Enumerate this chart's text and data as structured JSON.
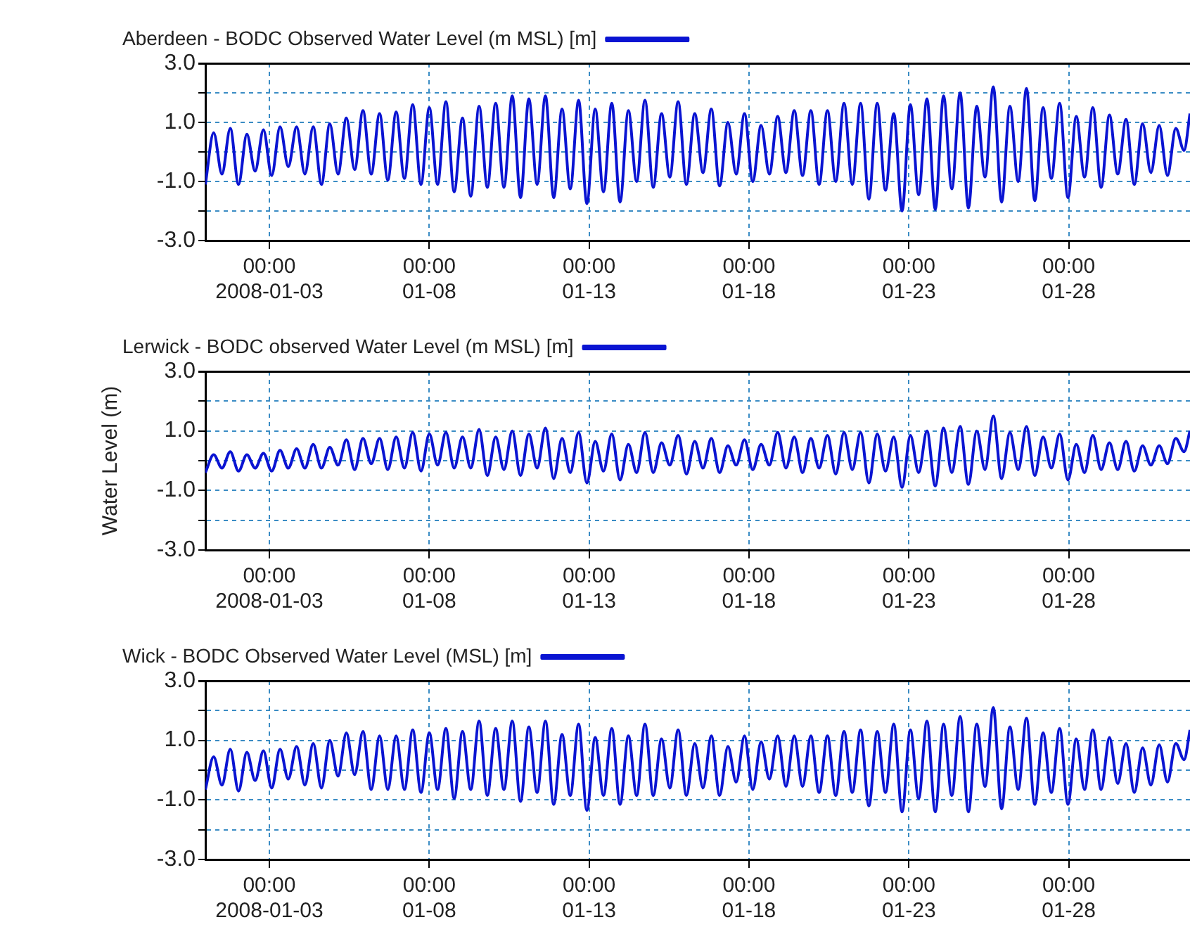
{
  "chart_data": [
    {
      "type": "line",
      "legend": "top left",
      "grid": true,
      "x": [
        "2008-01-01T00:00",
        "2008-01-01T06:14",
        "2008-01-01T12:27",
        "2008-01-01T18:41",
        "2008-01-02T00:54",
        "2008-01-02T07:08",
        "2008-01-02T13:21",
        "2008-01-02T19:35",
        "2008-01-03T01:48",
        "2008-01-03T08:02",
        "2008-01-03T14:15",
        "2008-01-03T20:29",
        "2008-01-04T02:42",
        "2008-01-04T08:56",
        "2008-01-04T15:09",
        "2008-01-04T21:23",
        "2008-01-05T03:36",
        "2008-01-05T09:50",
        "2008-01-05T16:03",
        "2008-01-05T22:17",
        "2008-01-06T04:30",
        "2008-01-06T10:44",
        "2008-01-06T16:57",
        "2008-01-06T23:11",
        "2008-01-07T05:24",
        "2008-01-07T11:38",
        "2008-01-07T17:51",
        "2008-01-08T00:05",
        "2008-01-08T06:18",
        "2008-01-08T12:32",
        "2008-01-08T18:45",
        "2008-01-09T00:59",
        "2008-01-09T07:12",
        "2008-01-09T13:26",
        "2008-01-09T19:39",
        "2008-01-10T01:53",
        "2008-01-10T08:06",
        "2008-01-10T14:20",
        "2008-01-10T20:33",
        "2008-01-11T02:47",
        "2008-01-11T09:00",
        "2008-01-11T15:14",
        "2008-01-11T21:27",
        "2008-01-12T03:41",
        "2008-01-12T09:54",
        "2008-01-12T16:08",
        "2008-01-12T22:21",
        "2008-01-13T04:35",
        "2008-01-13T10:48",
        "2008-01-13T17:02",
        "2008-01-13T23:15",
        "2008-01-14T05:29",
        "2008-01-14T11:42",
        "2008-01-14T17:56",
        "2008-01-15T00:09",
        "2008-01-15T06:23",
        "2008-01-15T12:36",
        "2008-01-15T18:50",
        "2008-01-16T01:03",
        "2008-01-16T07:17",
        "2008-01-16T13:30",
        "2008-01-16T19:44",
        "2008-01-17T01:57",
        "2008-01-17T08:11",
        "2008-01-17T14:24",
        "2008-01-17T20:38",
        "2008-01-18T02:51",
        "2008-01-18T09:05",
        "2008-01-18T15:18",
        "2008-01-18T21:32",
        "2008-01-19T03:45",
        "2008-01-19T09:59",
        "2008-01-19T16:12",
        "2008-01-19T22:26",
        "2008-01-20T04:39",
        "2008-01-20T10:53",
        "2008-01-20T17:06",
        "2008-01-20T23:20",
        "2008-01-21T05:33",
        "2008-01-21T11:47",
        "2008-01-21T18:00",
        "2008-01-22T00:14",
        "2008-01-22T06:27",
        "2008-01-22T12:41",
        "2008-01-22T18:54",
        "2008-01-23T01:08",
        "2008-01-23T07:21",
        "2008-01-23T13:35",
        "2008-01-23T19:48",
        "2008-01-24T02:02",
        "2008-01-24T08:15",
        "2008-01-24T14:29",
        "2008-01-24T20:42",
        "2008-01-25T02:56",
        "2008-01-25T09:09",
        "2008-01-25T15:23",
        "2008-01-25T21:36",
        "2008-01-26T03:50",
        "2008-01-26T10:03",
        "2008-01-26T16:17",
        "2008-01-26T22:30",
        "2008-01-27T04:44",
        "2008-01-27T10:57",
        "2008-01-27T17:11",
        "2008-01-27T23:24",
        "2008-01-28T05:38",
        "2008-01-28T11:51",
        "2008-01-28T18:05",
        "2008-01-29T00:18",
        "2008-01-29T06:32",
        "2008-01-29T12:45",
        "2008-01-29T18:59",
        "2008-01-30T01:12",
        "2008-01-30T07:26",
        "2008-01-30T13:39",
        "2008-01-30T19:53",
        "2008-01-31T02:06",
        "2008-01-31T08:20",
        "2008-01-31T14:33",
        "2008-01-31T19:00"
      ],
      "series": [
        {
          "name": "Aberdeen - BODC Observed Water Level (m MSL) [m]",
          "color": "#0a14d2",
          "values": [
            -1.1,
            0.65,
            -0.75,
            0.8,
            -1.1,
            0.6,
            -0.65,
            0.75,
            -0.8,
            0.85,
            -0.5,
            0.85,
            -0.75,
            0.85,
            -1.1,
            0.95,
            -0.75,
            1.15,
            -0.6,
            1.4,
            -0.75,
            1.3,
            -0.95,
            1.35,
            -0.9,
            1.6,
            -1.1,
            1.5,
            -1.1,
            1.7,
            -1.35,
            1.15,
            -1.5,
            1.55,
            -1.2,
            1.65,
            -1.2,
            1.9,
            -1.55,
            1.8,
            -1.1,
            1.9,
            -1.55,
            1.45,
            -1.25,
            1.75,
            -1.75,
            1.45,
            -1.35,
            1.65,
            -1.7,
            1.4,
            -1.0,
            1.75,
            -1.2,
            1.3,
            -0.85,
            1.7,
            -1.1,
            1.3,
            -0.7,
            1.45,
            -1.15,
            1.0,
            -0.75,
            1.3,
            -1.0,
            0.9,
            -0.75,
            1.2,
            -0.7,
            1.4,
            -0.8,
            1.4,
            -1.1,
            1.4,
            -1.0,
            1.65,
            -1.1,
            1.65,
            -1.6,
            1.65,
            -1.3,
            1.3,
            -2.0,
            1.6,
            -1.45,
            1.8,
            -1.95,
            1.9,
            -1.25,
            2.0,
            -1.9,
            1.55,
            -0.85,
            2.2,
            -1.7,
            1.55,
            -1.0,
            2.15,
            -1.65,
            1.5,
            -0.9,
            1.65,
            -1.55,
            1.2,
            -0.85,
            1.5,
            -1.2,
            1.25,
            -0.75,
            1.1,
            -1.1,
            0.95,
            -0.7,
            0.9,
            -0.8,
            0.8,
            0.05,
            1.3
          ]
        }
      ],
      "xlim": [
        "2008-01-01T00:00",
        "2008-01-31T19:00"
      ],
      "xticks": [
        {
          "value": "2008-01-03T00:00",
          "label": "00:00\n2008-01-03"
        },
        {
          "value": "2008-01-08T00:00",
          "label": "00:00\n01-08"
        },
        {
          "value": "2008-01-13T00:00",
          "label": "00:00\n01-13"
        },
        {
          "value": "2008-01-18T00:00",
          "label": "00:00\n01-18"
        },
        {
          "value": "2008-01-23T00:00",
          "label": "00:00\n01-23"
        },
        {
          "value": "2008-01-28T00:00",
          "label": "00:00\n01-28"
        }
      ],
      "ylim": [
        -3,
        3
      ],
      "yticks": [
        {
          "value": -3,
          "label": "-3.0"
        },
        {
          "value": -2,
          "label": null
        },
        {
          "value": -1,
          "label": "-1.0"
        },
        {
          "value": 0,
          "label": null
        },
        {
          "value": 1,
          "label": "1.0"
        },
        {
          "value": 2,
          "label": null
        },
        {
          "value": 3,
          "label": "3.0"
        }
      ]
    },
    {
      "type": "line",
      "legend": "top left",
      "grid": true,
      "ylabel": "Water Level (m)",
      "x": [
        "2008-01-01T00:00",
        "2008-01-01T06:14",
        "2008-01-01T12:27",
        "2008-01-01T18:41",
        "2008-01-02T00:54",
        "2008-01-02T07:08",
        "2008-01-02T13:21",
        "2008-01-02T19:35",
        "2008-01-03T01:48",
        "2008-01-03T08:02",
        "2008-01-03T14:15",
        "2008-01-03T20:29",
        "2008-01-04T02:42",
        "2008-01-04T08:56",
        "2008-01-04T15:09",
        "2008-01-04T21:23",
        "2008-01-05T03:36",
        "2008-01-05T09:50",
        "2008-01-05T16:03",
        "2008-01-05T22:17",
        "2008-01-06T04:30",
        "2008-01-06T10:44",
        "2008-01-06T16:57",
        "2008-01-06T23:11",
        "2008-01-07T05:24",
        "2008-01-07T11:38",
        "2008-01-07T17:51",
        "2008-01-08T00:05",
        "2008-01-08T06:18",
        "2008-01-08T12:32",
        "2008-01-08T18:45",
        "2008-01-09T00:59",
        "2008-01-09T07:12",
        "2008-01-09T13:26",
        "2008-01-09T19:39",
        "2008-01-10T01:53",
        "2008-01-10T08:06",
        "2008-01-10T14:20",
        "2008-01-10T20:33",
        "2008-01-11T02:47",
        "2008-01-11T09:00",
        "2008-01-11T15:14",
        "2008-01-11T21:27",
        "2008-01-12T03:41",
        "2008-01-12T09:54",
        "2008-01-12T16:08",
        "2008-01-12T22:21",
        "2008-01-13T04:35",
        "2008-01-13T10:48",
        "2008-01-13T17:02",
        "2008-01-13T23:15",
        "2008-01-14T05:29",
        "2008-01-14T11:42",
        "2008-01-14T17:56",
        "2008-01-15T00:09",
        "2008-01-15T06:23",
        "2008-01-15T12:36",
        "2008-01-15T18:50",
        "2008-01-16T01:03",
        "2008-01-16T07:17",
        "2008-01-16T13:30",
        "2008-01-16T19:44",
        "2008-01-17T01:57",
        "2008-01-17T08:11",
        "2008-01-17T14:24",
        "2008-01-17T20:38",
        "2008-01-18T02:51",
        "2008-01-18T09:05",
        "2008-01-18T15:18",
        "2008-01-18T21:32",
        "2008-01-19T03:45",
        "2008-01-19T09:59",
        "2008-01-19T16:12",
        "2008-01-19T22:26",
        "2008-01-20T04:39",
        "2008-01-20T10:53",
        "2008-01-20T17:06",
        "2008-01-20T23:20",
        "2008-01-21T05:33",
        "2008-01-21T11:47",
        "2008-01-21T18:00",
        "2008-01-22T00:14",
        "2008-01-22T06:27",
        "2008-01-22T12:41",
        "2008-01-22T18:54",
        "2008-01-23T01:08",
        "2008-01-23T07:21",
        "2008-01-23T13:35",
        "2008-01-23T19:48",
        "2008-01-24T02:02",
        "2008-01-24T08:15",
        "2008-01-24T14:29",
        "2008-01-24T20:42",
        "2008-01-25T02:56",
        "2008-01-25T09:09",
        "2008-01-25T15:23",
        "2008-01-25T21:36",
        "2008-01-26T03:50",
        "2008-01-26T10:03",
        "2008-01-26T16:17",
        "2008-01-26T22:30",
        "2008-01-27T04:44",
        "2008-01-27T10:57",
        "2008-01-27T17:11",
        "2008-01-27T23:24",
        "2008-01-28T05:38",
        "2008-01-28T11:51",
        "2008-01-28T18:05",
        "2008-01-29T00:18",
        "2008-01-29T06:32",
        "2008-01-29T12:45",
        "2008-01-29T18:59",
        "2008-01-30T01:12",
        "2008-01-30T07:26",
        "2008-01-30T13:39",
        "2008-01-30T19:53",
        "2008-01-31T02:06",
        "2008-01-31T08:20",
        "2008-01-31T14:33",
        "2008-01-31T19:00"
      ],
      "series": [
        {
          "name": "Lerwick - BODC observed Water Level (m MSL) [m]",
          "color": "#0a14d2",
          "values": [
            -0.4,
            0.2,
            -0.25,
            0.3,
            -0.35,
            0.2,
            -0.25,
            0.25,
            -0.35,
            0.35,
            -0.25,
            0.4,
            -0.25,
            0.55,
            -0.25,
            0.45,
            -0.15,
            0.7,
            -0.3,
            0.75,
            -0.1,
            0.75,
            -0.3,
            0.8,
            -0.25,
            0.95,
            -0.35,
            0.9,
            -0.15,
            0.95,
            -0.25,
            0.8,
            -0.25,
            1.05,
            -0.5,
            0.8,
            -0.3,
            1.0,
            -0.5,
            0.9,
            -0.25,
            1.1,
            -0.6,
            0.75,
            -0.4,
            0.95,
            -0.75,
            0.65,
            -0.35,
            0.9,
            -0.65,
            0.55,
            -0.4,
            0.95,
            -0.4,
            0.6,
            -0.15,
            0.85,
            -0.45,
            0.65,
            -0.25,
            0.75,
            -0.4,
            0.5,
            -0.15,
            0.7,
            -0.3,
            0.55,
            -0.15,
            0.95,
            -0.25,
            0.8,
            -0.4,
            0.75,
            -0.25,
            0.85,
            -0.45,
            0.95,
            -0.3,
            0.95,
            -0.75,
            0.9,
            -0.35,
            0.8,
            -0.9,
            0.85,
            -0.4,
            1.0,
            -0.85,
            1.1,
            -0.4,
            1.15,
            -0.8,
            1.0,
            -0.3,
            1.5,
            -0.6,
            0.95,
            -0.3,
            1.15,
            -0.5,
            0.8,
            -0.25,
            0.9,
            -0.65,
            0.55,
            -0.4,
            0.85,
            -0.3,
            0.6,
            -0.3,
            0.65,
            -0.35,
            0.5,
            -0.15,
            0.5,
            -0.1,
            0.75,
            0.3,
            1.0
          ]
        }
      ],
      "xlim": [
        "2008-01-01T00:00",
        "2008-01-31T19:00"
      ],
      "xticks": [
        {
          "value": "2008-01-03T00:00",
          "label": "00:00\n2008-01-03"
        },
        {
          "value": "2008-01-08T00:00",
          "label": "00:00\n01-08"
        },
        {
          "value": "2008-01-13T00:00",
          "label": "00:00\n01-13"
        },
        {
          "value": "2008-01-18T00:00",
          "label": "00:00\n01-18"
        },
        {
          "value": "2008-01-23T00:00",
          "label": "00:00\n01-23"
        },
        {
          "value": "2008-01-28T00:00",
          "label": "00:00\n01-28"
        }
      ],
      "ylim": [
        -3,
        3
      ],
      "yticks": [
        {
          "value": -3,
          "label": "-3.0"
        },
        {
          "value": -2,
          "label": null
        },
        {
          "value": -1,
          "label": "-1.0"
        },
        {
          "value": 0,
          "label": null
        },
        {
          "value": 1,
          "label": "1.0"
        },
        {
          "value": 2,
          "label": null
        },
        {
          "value": 3,
          "label": "3.0"
        }
      ]
    },
    {
      "type": "line",
      "legend": "top left",
      "grid": true,
      "x": [
        "2008-01-01T00:00",
        "2008-01-01T06:14",
        "2008-01-01T12:27",
        "2008-01-01T18:41",
        "2008-01-02T00:54",
        "2008-01-02T07:08",
        "2008-01-02T13:21",
        "2008-01-02T19:35",
        "2008-01-03T01:48",
        "2008-01-03T08:02",
        "2008-01-03T14:15",
        "2008-01-03T20:29",
        "2008-01-04T02:42",
        "2008-01-04T08:56",
        "2008-01-04T15:09",
        "2008-01-04T21:23",
        "2008-01-05T03:36",
        "2008-01-05T09:50",
        "2008-01-05T16:03",
        "2008-01-05T22:17",
        "2008-01-06T04:30",
        "2008-01-06T10:44",
        "2008-01-06T16:57",
        "2008-01-06T23:11",
        "2008-01-07T05:24",
        "2008-01-07T11:38",
        "2008-01-07T17:51",
        "2008-01-08T00:05",
        "2008-01-08T06:18",
        "2008-01-08T12:32",
        "2008-01-08T18:45",
        "2008-01-09T00:59",
        "2008-01-09T07:12",
        "2008-01-09T13:26",
        "2008-01-09T19:39",
        "2008-01-10T01:53",
        "2008-01-10T08:06",
        "2008-01-10T14:20",
        "2008-01-10T20:33",
        "2008-01-11T02:47",
        "2008-01-11T09:00",
        "2008-01-11T15:14",
        "2008-01-11T21:27",
        "2008-01-12T03:41",
        "2008-01-12T09:54",
        "2008-01-12T16:08",
        "2008-01-12T22:21",
        "2008-01-13T04:35",
        "2008-01-13T10:48",
        "2008-01-13T17:02",
        "2008-01-13T23:15",
        "2008-01-14T05:29",
        "2008-01-14T11:42",
        "2008-01-14T17:56",
        "2008-01-15T00:09",
        "2008-01-15T06:23",
        "2008-01-15T12:36",
        "2008-01-15T18:50",
        "2008-01-16T01:03",
        "2008-01-16T07:17",
        "2008-01-16T13:30",
        "2008-01-16T19:44",
        "2008-01-17T01:57",
        "2008-01-17T08:11",
        "2008-01-17T14:24",
        "2008-01-17T20:38",
        "2008-01-18T02:51",
        "2008-01-18T09:05",
        "2008-01-18T15:18",
        "2008-01-18T21:32",
        "2008-01-19T03:45",
        "2008-01-19T09:59",
        "2008-01-19T16:12",
        "2008-01-19T22:26",
        "2008-01-20T04:39",
        "2008-01-20T10:53",
        "2008-01-20T17:06",
        "2008-01-20T23:20",
        "2008-01-21T05:33",
        "2008-01-21T11:47",
        "2008-01-21T18:00",
        "2008-01-22T00:14",
        "2008-01-22T06:27",
        "2008-01-22T12:41",
        "2008-01-22T18:54",
        "2008-01-23T01:08",
        "2008-01-23T07:21",
        "2008-01-23T13:35",
        "2008-01-23T19:48",
        "2008-01-24T02:02",
        "2008-01-24T08:15",
        "2008-01-24T14:29",
        "2008-01-24T20:42",
        "2008-01-25T02:56",
        "2008-01-25T09:09",
        "2008-01-25T15:23",
        "2008-01-25T21:36",
        "2008-01-26T03:50",
        "2008-01-26T10:03",
        "2008-01-26T16:17",
        "2008-01-26T22:30",
        "2008-01-27T04:44",
        "2008-01-27T10:57",
        "2008-01-27T17:11",
        "2008-01-27T23:24",
        "2008-01-28T05:38",
        "2008-01-28T11:51",
        "2008-01-28T18:05",
        "2008-01-29T00:18",
        "2008-01-29T06:32",
        "2008-01-29T12:45",
        "2008-01-29T18:59",
        "2008-01-30T01:12",
        "2008-01-30T07:26",
        "2008-01-30T13:39",
        "2008-01-30T19:53",
        "2008-01-31T02:06",
        "2008-01-31T08:20",
        "2008-01-31T14:33",
        "2008-01-31T19:00"
      ],
      "series": [
        {
          "name": "Wick - BODC Observed Water Level (MSL) [m]",
          "color": "#0a14d2",
          "values": [
            -0.65,
            0.45,
            -0.5,
            0.7,
            -0.7,
            0.6,
            -0.35,
            0.65,
            -0.6,
            0.7,
            -0.3,
            0.8,
            -0.5,
            0.9,
            -0.6,
            1.0,
            -0.2,
            1.25,
            -0.15,
            1.3,
            -0.65,
            1.15,
            -0.65,
            1.15,
            -0.65,
            1.35,
            -0.75,
            1.25,
            -0.65,
            1.4,
            -0.95,
            1.3,
            -0.65,
            1.65,
            -0.85,
            1.4,
            -0.65,
            1.65,
            -1.05,
            1.45,
            -0.75,
            1.65,
            -1.15,
            1.2,
            -0.85,
            1.55,
            -1.35,
            1.1,
            -0.85,
            1.4,
            -1.15,
            1.15,
            -0.85,
            1.55,
            -0.85,
            1.05,
            -0.6,
            1.35,
            -0.85,
            0.9,
            -0.6,
            1.15,
            -0.85,
            0.8,
            -0.4,
            1.15,
            -0.65,
            0.95,
            -0.3,
            1.15,
            -0.55,
            1.15,
            -0.55,
            1.15,
            -0.75,
            1.15,
            -0.85,
            1.3,
            -0.75,
            1.35,
            -1.2,
            1.3,
            -0.75,
            1.55,
            -1.4,
            1.35,
            -0.95,
            1.65,
            -1.4,
            1.55,
            -0.85,
            1.8,
            -1.4,
            1.55,
            -0.55,
            2.1,
            -1.3,
            1.45,
            -0.65,
            1.75,
            -1.15,
            1.25,
            -0.75,
            1.4,
            -1.15,
            1.05,
            -0.65,
            1.35,
            -0.65,
            1.1,
            -0.45,
            0.9,
            -0.75,
            0.75,
            -0.5,
            0.85,
            -0.4,
            0.9,
            0.35,
            1.35
          ]
        }
      ],
      "xlim": [
        "2008-01-01T00:00",
        "2008-01-31T19:00"
      ],
      "xticks": [
        {
          "value": "2008-01-03T00:00",
          "label": "00:00\n2008-01-03"
        },
        {
          "value": "2008-01-08T00:00",
          "label": "00:00\n01-08"
        },
        {
          "value": "2008-01-13T00:00",
          "label": "00:00\n01-13"
        },
        {
          "value": "2008-01-18T00:00",
          "label": "00:00\n01-18"
        },
        {
          "value": "2008-01-23T00:00",
          "label": "00:00\n01-23"
        },
        {
          "value": "2008-01-28T00:00",
          "label": "00:00\n01-28"
        }
      ],
      "ylim": [
        -3,
        3
      ],
      "yticks": [
        {
          "value": -3,
          "label": "-3.0"
        },
        {
          "value": -2,
          "label": null
        },
        {
          "value": -1,
          "label": "-1.0"
        },
        {
          "value": 0,
          "label": null
        },
        {
          "value": 1,
          "label": "1.0"
        },
        {
          "value": 2,
          "label": null
        },
        {
          "value": 3,
          "label": "3.0"
        }
      ]
    }
  ]
}
